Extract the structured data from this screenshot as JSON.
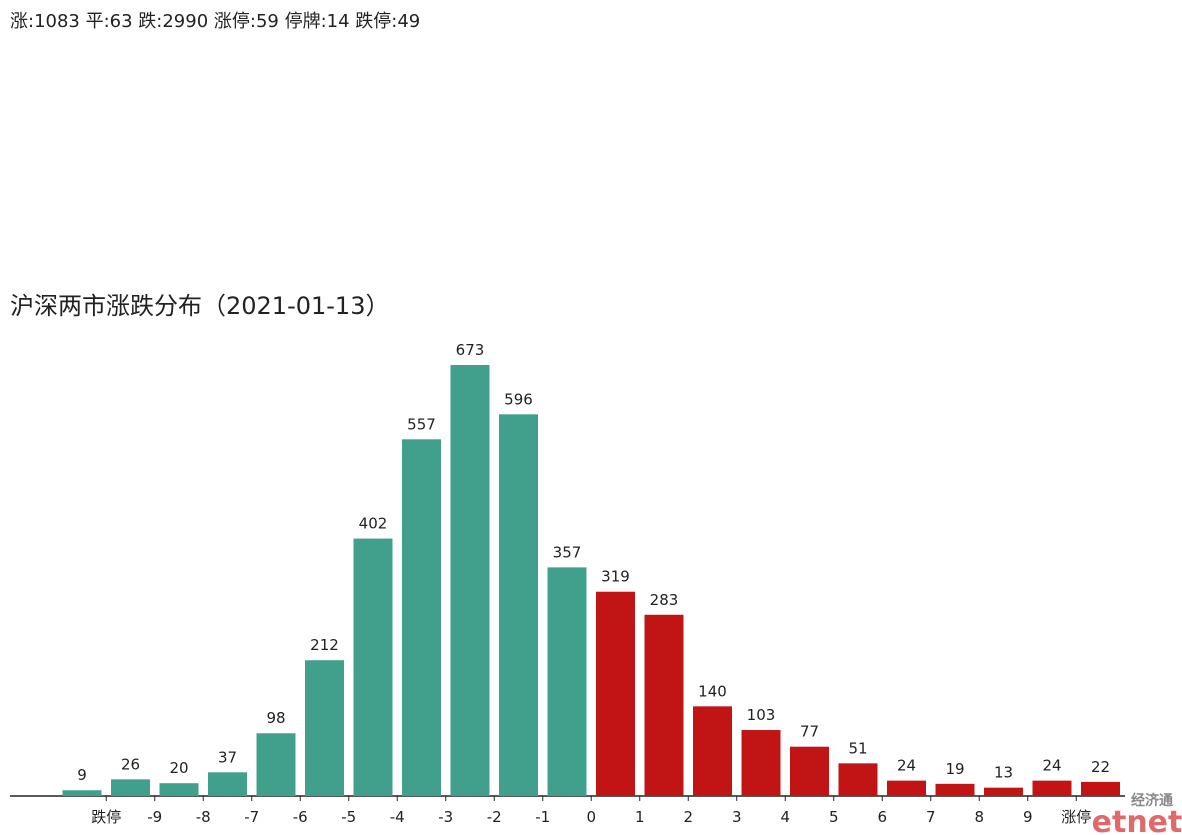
{
  "header": "涨:1083 平:63 跌:2990 涨停:59 停牌:14 跌停:49",
  "watermark": {
    "cn": "经济通",
    "en": "etnet"
  },
  "chart_data": {
    "type": "bar",
    "title": "沪深两市涨跌分布（2021-01-13）",
    "values": [
      9,
      26,
      20,
      37,
      98,
      212,
      402,
      557,
      673,
      596,
      357,
      319,
      283,
      140,
      103,
      77,
      51,
      24,
      19,
      13,
      24,
      22
    ],
    "bar_colors": [
      "#41a08c",
      "#41a08c",
      "#41a08c",
      "#41a08c",
      "#41a08c",
      "#41a08c",
      "#41a08c",
      "#41a08c",
      "#41a08c",
      "#41a08c",
      "#41a08c",
      "#c11414",
      "#c11414",
      "#c11414",
      "#c11414",
      "#c11414",
      "#c11414",
      "#c11414",
      "#c11414",
      "#c11414",
      "#c11414",
      "#c11414"
    ],
    "xtick_labels": [
      "跌停",
      "-9",
      "-8",
      "-7",
      "-6",
      "-5",
      "-4",
      "-3",
      "-2",
      "-1",
      "0",
      "1",
      "2",
      "3",
      "4",
      "5",
      "6",
      "7",
      "8",
      "9",
      "涨停"
    ]
  }
}
